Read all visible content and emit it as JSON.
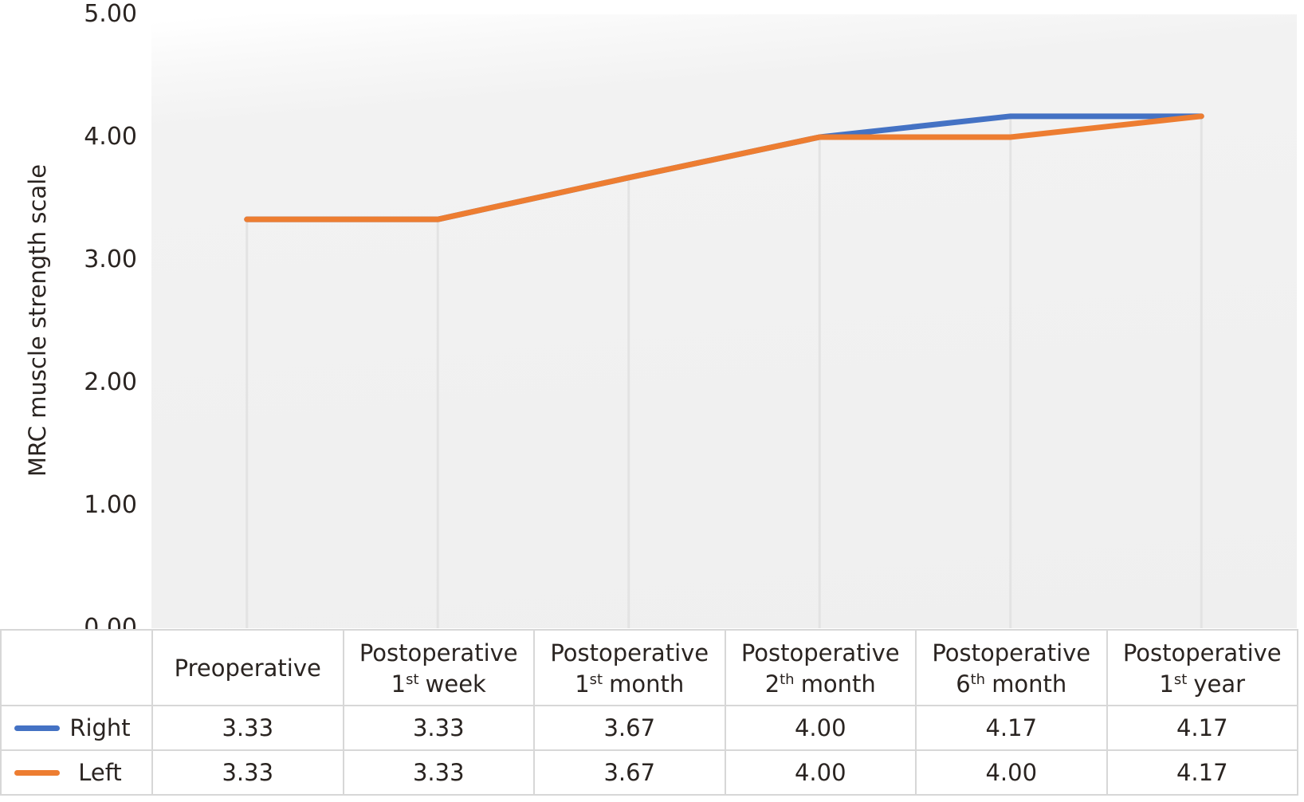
{
  "chart_data": {
    "type": "line",
    "title": "",
    "xlabel": "",
    "ylabel": "MRC muscle strength scale",
    "ylim": [
      0,
      5
    ],
    "yticks": [
      "0.00",
      "1.00",
      "2.00",
      "3.00",
      "4.00",
      "5.00"
    ],
    "categories": [
      "Preoperative",
      "Postoperative 1st week",
      "Postoperative 1st month",
      "Postoperative 2th month",
      "Postoperative 6th month",
      "Postoperative 1st year"
    ],
    "series": [
      {
        "name": "Right",
        "color": "#4472C4",
        "values": [
          3.33,
          3.33,
          3.67,
          4.0,
          4.17,
          4.17
        ]
      },
      {
        "name": "Left",
        "color": "#ED7D31",
        "values": [
          3.33,
          3.33,
          3.67,
          4.0,
          4.0,
          4.17
        ]
      }
    ],
    "grid": "vertical drop lines at each data point, no horizontal gridlines",
    "legend_position": "table rows below chart"
  },
  "y_axis": {
    "title": "MRC muscle strength scale",
    "ticks": [
      "5.00",
      "4.00",
      "3.00",
      "2.00",
      "1.00",
      "0.00"
    ]
  },
  "table": {
    "categories": [
      {
        "line1": "Preoperative",
        "ord": "",
        "sup": "",
        "unit": ""
      },
      {
        "line1": "Postoperative",
        "ord": "1",
        "sup": "st",
        "unit": "week"
      },
      {
        "line1": "Postoperative",
        "ord": "1",
        "sup": "st",
        "unit": "month"
      },
      {
        "line1": "Postoperative",
        "ord": "2",
        "sup": "th",
        "unit": "month"
      },
      {
        "line1": "Postoperative",
        "ord": "6",
        "sup": "th",
        "unit": "month"
      },
      {
        "line1": "Postoperative",
        "ord": "1",
        "sup": "st",
        "unit": "year"
      }
    ],
    "rows": [
      {
        "label": "Right",
        "color": "#4472C4",
        "values": [
          "3.33",
          "3.33",
          "3.67",
          "4.00",
          "4.17",
          "4.17"
        ]
      },
      {
        "label": "Left",
        "color": "#ED7D31",
        "values": [
          "3.33",
          "3.33",
          "3.67",
          "4.00",
          "4.00",
          "4.17"
        ]
      }
    ]
  },
  "colors": {
    "right_series": "#4472C4",
    "left_series": "#ED7D31",
    "dropline": "#e3e3e3",
    "table_border": "#d7d7d7",
    "text": "#2a2421"
  }
}
